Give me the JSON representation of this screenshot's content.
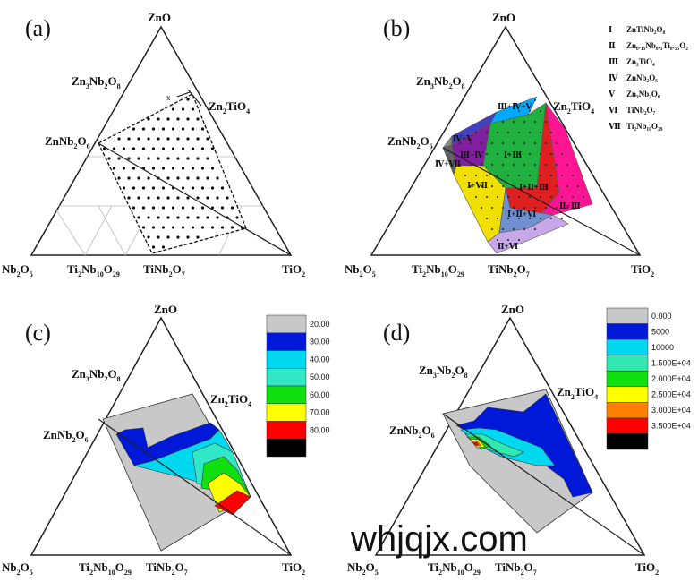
{
  "panels": {
    "a": {
      "label": "(a)",
      "apex_top": "ZnO",
      "apex_left_prefix": "Nb",
      "apex_left_sub": "2",
      "apex_left_mid": "O",
      "apex_left_sub2": "5",
      "apex_right_prefix": "TiO",
      "apex_right_sub": "2",
      "zn3": [
        "Zn",
        "3",
        "Nb",
        "2",
        "O",
        "8"
      ],
      "zn2": [
        "Zn",
        "2",
        "TiO",
        "4"
      ],
      "znnb": [
        "ZnNb",
        "2",
        "O",
        "6"
      ],
      "ti2": [
        "Ti",
        "2",
        "Nb",
        "10",
        "O",
        "29"
      ],
      "tinb": [
        "TiNb",
        "2",
        "O",
        "7"
      ],
      "marker": "x"
    },
    "b": {
      "label": "(b)",
      "apex_top": "ZnO",
      "legend": [
        {
          "num": "Ⅰ",
          "text": "ZnTiNb₂O₈"
        },
        {
          "num": "Ⅱ",
          "text": "Zn₀.₁₅Nb₀.₃Ti₀.₅₅O₂"
        },
        {
          "num": "Ⅲ",
          "text": "Zn₂TiO₄"
        },
        {
          "num": "Ⅳ",
          "text": "ZnNb₂O₆"
        },
        {
          "num": "Ⅴ",
          "text": "Zn₃Nb₂O₈"
        },
        {
          "num": "Ⅵ",
          "text": "TiNb₂O₇"
        },
        {
          "num": "Ⅶ",
          "text": "Ti₂Nb₁₀O₂₉"
        }
      ],
      "regions": [
        "Ⅲ+Ⅳ+Ⅴ",
        "Ⅳ+Ⅴ",
        "Ⅲ+Ⅳ",
        "Ⅰ+Ⅲ",
        "Ⅳ+Ⅶ",
        "Ⅰ+Ⅶ",
        "Ⅰ+Ⅱ+Ⅲ",
        "Ⅱ+Ⅲ",
        "Ⅰ+Ⅱ+Ⅵ",
        "Ⅱ+Ⅵ"
      ]
    },
    "c": {
      "label": "(c)",
      "apex_top": "ZnO",
      "scale": [
        "20.00",
        "30.00",
        "40.00",
        "50.00",
        "60.00",
        "70.00",
        "80.00"
      ],
      "colors": [
        "#c8c8c8",
        "#0018d8",
        "#00d8f0",
        "#30e8c8",
        "#10e010",
        "#ffff00",
        "#ff0000",
        "#000000"
      ]
    },
    "d": {
      "label": "(d)",
      "apex_top": "ZnO",
      "scale": [
        "0.000",
        "5000",
        "10000",
        "1.500E+04",
        "2.000E+04",
        "2.500E+04",
        "3.000E+04",
        "3.500E+04"
      ],
      "colors": [
        "#c8c8c8",
        "#0018d8",
        "#00d8f0",
        "#30e8b0",
        "#10e010",
        "#ffff00",
        "#ff8000",
        "#ff0000",
        "#000000"
      ]
    }
  },
  "watermark": "whjqjx.com"
}
